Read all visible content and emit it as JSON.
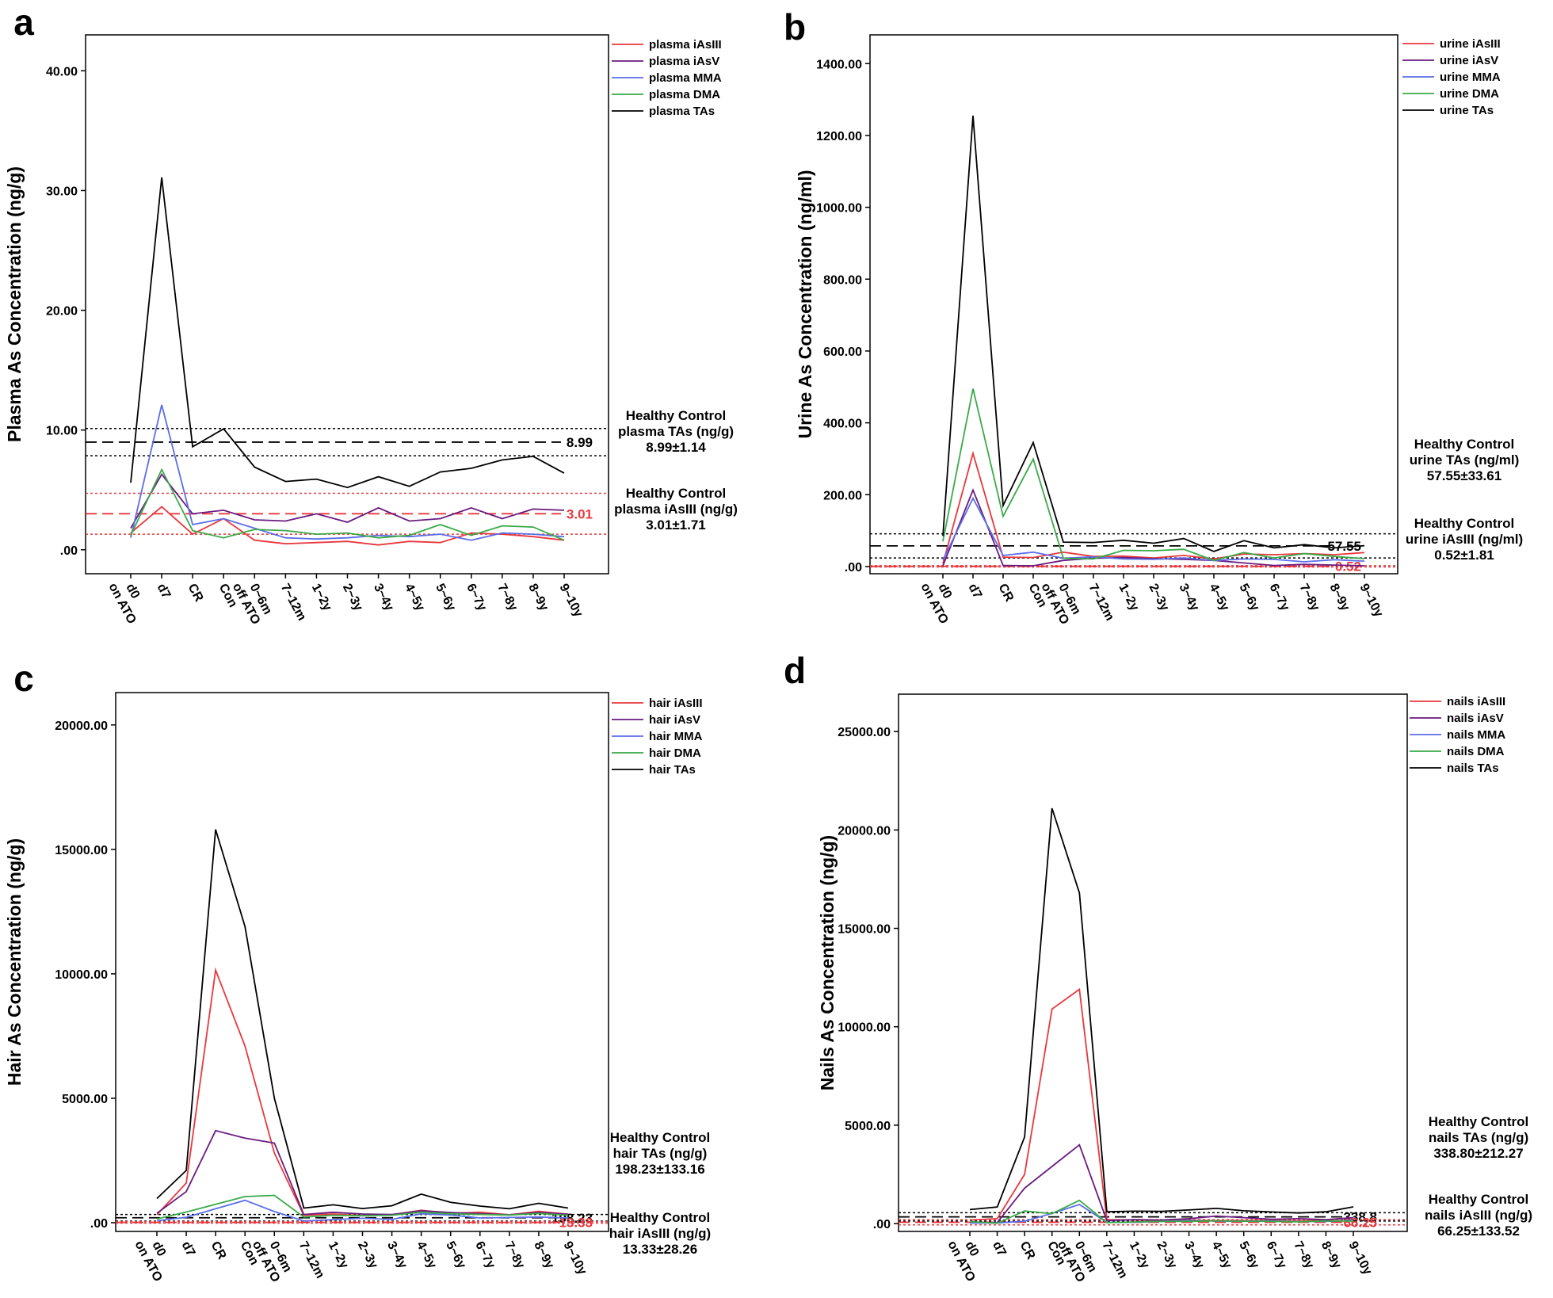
{
  "categories": [
    [
      "d0",
      "on ATO"
    ],
    [
      "d7"
    ],
    [
      "CR"
    ],
    [
      "Con"
    ],
    [
      "0~6m",
      "off ATO"
    ],
    [
      "7~12m"
    ],
    [
      "1~2y"
    ],
    [
      "2~3y"
    ],
    [
      "3~4y"
    ],
    [
      "4~5y"
    ],
    [
      "5~6y"
    ],
    [
      "6~7y"
    ],
    [
      "7~8y"
    ],
    [
      "8~9y"
    ],
    [
      "9~10y"
    ]
  ],
  "colors": {
    "iAsIII": "#e8383d",
    "iAsV": "#6a1b7f",
    "MMA": "#5b6ee8",
    "DMA": "#3aaa48",
    "TAs": "#000000",
    "ref_red": "#e8383d",
    "ref_black": "#000000"
  },
  "chart_data": [
    {
      "type": "line",
      "letter": "a",
      "ylabel": "Plasma As Concentration (ng/g)",
      "yticks": [
        0,
        10,
        20,
        30,
        40
      ],
      "ytick_labels": [
        ".00",
        "10.00",
        "20.00",
        "30.00",
        "40.00"
      ],
      "ylim": [
        -2,
        43
      ],
      "series": [
        {
          "name": "plasma iAsIII",
          "key": "iAsIII",
          "values": [
            1.4,
            3.6,
            1.3,
            2.6,
            0.8,
            0.5,
            0.6,
            0.7,
            0.4,
            0.7,
            0.6,
            1.4,
            1.3,
            1.1,
            0.8
          ]
        },
        {
          "name": "plasma iAsV",
          "key": "iAsV",
          "values": [
            1.8,
            6.3,
            3.0,
            3.3,
            2.5,
            2.4,
            3.0,
            2.3,
            3.5,
            2.4,
            2.6,
            3.5,
            2.6,
            3.4,
            3.3
          ]
        },
        {
          "name": "plasma MMA",
          "key": "MMA",
          "values": [
            1.0,
            12.1,
            2.1,
            2.6,
            1.8,
            1.0,
            0.9,
            1.0,
            1.2,
            1.1,
            1.3,
            0.8,
            1.4,
            1.3,
            1.1
          ]
        },
        {
          "name": "plasma DMA",
          "key": "DMA",
          "values": [
            1.2,
            6.7,
            1.6,
            1.0,
            1.7,
            1.6,
            1.3,
            1.4,
            1.0,
            1.2,
            2.1,
            1.2,
            2.0,
            1.9,
            0.8
          ]
        },
        {
          "name": "plasma TAs",
          "key": "TAs",
          "values": [
            5.6,
            31.1,
            8.6,
            10.1,
            6.9,
            5.7,
            5.9,
            5.2,
            6.1,
            5.3,
            6.5,
            6.8,
            7.5,
            7.8,
            6.4
          ]
        }
      ],
      "references": [
        {
          "color": "ref_black",
          "mean": 8.99,
          "sd": 1.14,
          "label": "8.99",
          "text": [
            "Healthy Control",
            "plasma TAs (ng/g)",
            "8.99±1.14"
          ]
        },
        {
          "color": "ref_red",
          "mean": 3.01,
          "sd": 1.71,
          "label": "3.01",
          "text": [
            "Healthy Control",
            "plasma iAsIII (ng/g)",
            "3.01±1.71"
          ]
        }
      ]
    },
    {
      "type": "line",
      "letter": "b",
      "ylabel": "Urine As Concentration (ng/ml)",
      "yticks": [
        0,
        200,
        400,
        600,
        800,
        1000,
        1200,
        1400
      ],
      "ytick_labels": [
        ".00",
        "200.00",
        "400.00",
        "600.00",
        "800.00",
        "1000.00",
        "1200.00",
        "1400.00"
      ],
      "ylim": [
        -20,
        1480
      ],
      "series": [
        {
          "name": "urine iAsIII",
          "key": "iAsIII",
          "values": [
            8,
            315,
            26,
            25,
            40,
            28,
            29,
            24,
            31,
            21,
            35,
            33,
            36,
            33,
            39
          ]
        },
        {
          "name": "urine iAsV",
          "key": "iAsV",
          "values": [
            2,
            213,
            3,
            2,
            17,
            23,
            25,
            22,
            20,
            17,
            10,
            3,
            6,
            4,
            2
          ]
        },
        {
          "name": "urine MMA",
          "key": "MMA",
          "values": [
            18,
            190,
            31,
            40,
            23,
            27,
            21,
            20,
            24,
            17,
            21,
            20,
            13,
            19,
            15
          ]
        },
        {
          "name": "urine DMA",
          "key": "DMA",
          "values": [
            70,
            495,
            140,
            299,
            23,
            21,
            45,
            44,
            48,
            17,
            39,
            24,
            36,
            28,
            22
          ]
        },
        {
          "name": "urine TAs",
          "key": "TAs",
          "values": [
            85,
            1255,
            170,
            345,
            68,
            67,
            73,
            65,
            78,
            42,
            72,
            52,
            61,
            52,
            58
          ]
        }
      ],
      "references": [
        {
          "color": "ref_black",
          "mean": 57.55,
          "sd": 33.61,
          "label": "57.55",
          "text": [
            "Healthy Control",
            "urine TAs (ng/ml)",
            "57.55±33.61"
          ]
        },
        {
          "color": "ref_red",
          "mean": 0.52,
          "sd": 1.81,
          "label": "0.52",
          "text": [
            "Healthy Control",
            "urine iAsIII (ng/ml)",
            "0.52±1.81"
          ]
        }
      ]
    },
    {
      "type": "line",
      "letter": "c",
      "ylabel": "Hair As Concentration (ng/g)",
      "yticks": [
        0,
        5000,
        10000,
        15000,
        20000
      ],
      "ytick_labels": [
        ".00",
        "5000.00",
        "10000.00",
        "15000.00",
        "20000.00"
      ],
      "ylim": [
        -350,
        21300
      ],
      "series": [
        {
          "name": "hair iAsIII",
          "key": "iAsIII",
          "values": [
            320,
            1600,
            10150,
            7100,
            2800,
            300,
            350,
            280,
            320,
            500,
            380,
            420,
            320,
            460,
            340
          ]
        },
        {
          "name": "hair iAsV",
          "key": "iAsV",
          "values": [
            380,
            1250,
            3700,
            3400,
            3200,
            330,
            420,
            350,
            330,
            480,
            410,
            360,
            320,
            410,
            340
          ]
        },
        {
          "name": "hair MMA",
          "key": "MMA",
          "values": [
            80,
            220,
            560,
            900,
            450,
            70,
            120,
            180,
            130,
            360,
            310,
            190,
            210,
            230,
            190
          ]
        },
        {
          "name": "hair DMA",
          "key": "DMA",
          "values": [
            150,
            430,
            740,
            1050,
            1100,
            230,
            300,
            280,
            300,
            420,
            360,
            330,
            310,
            370,
            300
          ]
        },
        {
          "name": "hair TAs",
          "key": "TAs",
          "values": [
            970,
            2100,
            15800,
            11900,
            5000,
            590,
            720,
            570,
            680,
            1150,
            820,
            670,
            560,
            780,
            590
          ]
        }
      ],
      "references": [
        {
          "color": "ref_black",
          "mean": 198.23,
          "sd": 133.16,
          "label": "198.23",
          "text": [
            "Healthy Control",
            "hair TAs (ng/g)",
            "198.23±133.16"
          ]
        },
        {
          "color": "ref_red",
          "mean": 13.33,
          "sd": 28.26,
          "label": "13.33",
          "text": [
            "Healthy Control",
            "hair iAsIII (ng/g)",
            "13.33±28.26"
          ]
        }
      ]
    },
    {
      "type": "line",
      "letter": "d",
      "ylabel": "Nails As Concentration (ng/g)",
      "yticks": [
        0,
        5000,
        10000,
        15000,
        20000,
        25000
      ],
      "ytick_labels": [
        ".00",
        "5000.00",
        "10000.00",
        "15000.00",
        "20000.00",
        "25000.00"
      ],
      "ylim": [
        -400,
        26900
      ],
      "series": [
        {
          "name": "nails iAsIII",
          "key": "iAsIII",
          "values": [
            180,
            250,
            2500,
            10900,
            11900,
            200,
            180,
            160,
            170,
            150,
            150,
            160,
            130,
            180,
            300
          ]
        },
        {
          "name": "nails iAsV",
          "key": "iAsV",
          "values": [
            50,
            50,
            1800,
            2900,
            4000,
            150,
            200,
            180,
            250,
            380,
            300,
            220,
            250,
            200,
            300
          ]
        },
        {
          "name": "nails MMA",
          "key": "MMA",
          "values": [
            30,
            30,
            120,
            520,
            970,
            60,
            70,
            110,
            150,
            130,
            120,
            130,
            100,
            110,
            170
          ]
        },
        {
          "name": "nails DMA",
          "key": "DMA",
          "values": [
            100,
            20,
            640,
            500,
            1180,
            50,
            80,
            110,
            110,
            140,
            120,
            110,
            90,
            130,
            130
          ]
        },
        {
          "name": "nails TAs",
          "key": "TAs",
          "values": [
            710,
            840,
            4400,
            21100,
            16800,
            600,
            630,
            620,
            690,
            770,
            650,
            590,
            540,
            600,
            850
          ]
        }
      ],
      "references": [
        {
          "color": "ref_black",
          "mean": 338.8,
          "sd": 212.27,
          "label": "338.8",
          "text": [
            "Healthy Control",
            "nails TAs (ng/g)",
            "338.80±212.27"
          ]
        },
        {
          "color": "ref_red",
          "mean": 66.25,
          "sd": 133.52,
          "label": "66.25",
          "text": [
            "Healthy Control",
            "nails iAsIII (ng/g)",
            "66.25±133.52"
          ]
        }
      ]
    }
  ]
}
